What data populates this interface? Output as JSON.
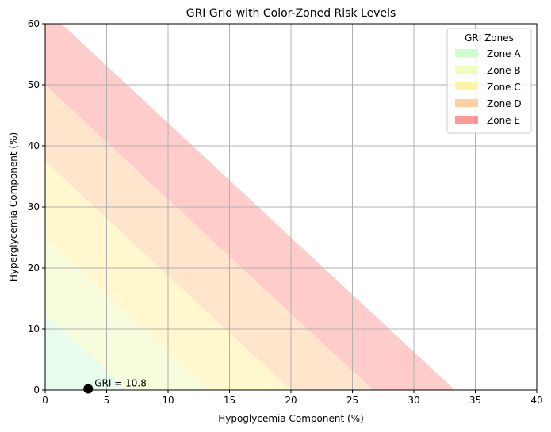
{
  "chart_data": {
    "type": "area",
    "title": "GRI Grid with Color-Zoned Risk Levels",
    "xlabel": "Hypoglycemia Component (%)",
    "ylabel": "Hyperglycemia Component (%)",
    "xlim": [
      0,
      40
    ],
    "ylim": [
      0,
      60
    ],
    "xticks": [
      0,
      5,
      10,
      15,
      20,
      25,
      30,
      35,
      40
    ],
    "yticks": [
      0,
      10,
      20,
      30,
      40,
      50,
      60
    ],
    "grid": true,
    "gri_formula": {
      "hypo_weight": 3.0,
      "hyper_weight": 1.6
    },
    "zones": [
      {
        "name": "Zone A",
        "gri_min": 0,
        "gri_max": 20,
        "fill": "#e8fced",
        "legend": "#ccffcc"
      },
      {
        "name": "Zone B",
        "gri_min": 20,
        "gri_max": 40,
        "fill": "#f6fcdc",
        "legend": "#eeffbb"
      },
      {
        "name": "Zone C",
        "gri_min": 40,
        "gri_max": 60,
        "fill": "#fff8cf",
        "legend": "#fff3a6"
      },
      {
        "name": "Zone D",
        "gri_min": 60,
        "gri_max": 80,
        "fill": "#ffe5cb",
        "legend": "#ffd09f"
      },
      {
        "name": "Zone E",
        "gri_min": 80,
        "gri_max": 100,
        "fill": "#ffcccc",
        "legend": "#ff9999"
      }
    ],
    "point": {
      "x": 3.5,
      "y": 0.2,
      "label": "GRI = 10.8"
    },
    "legend": {
      "title": "GRI Zones",
      "placement": "top-right"
    }
  }
}
